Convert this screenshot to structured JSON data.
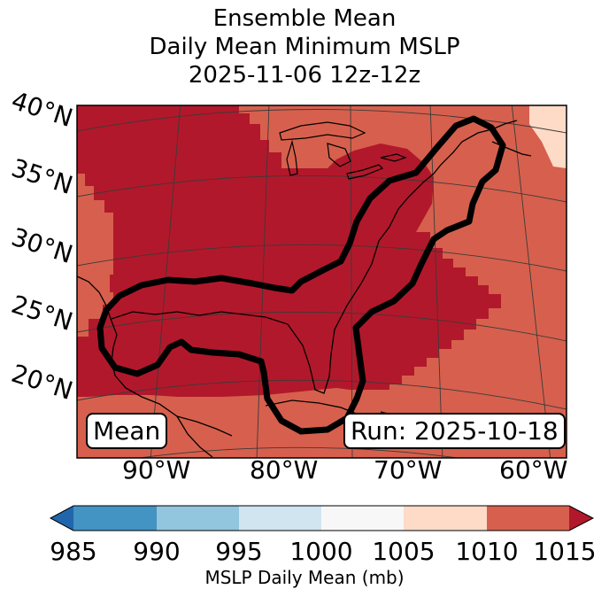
{
  "title": {
    "line1": "Ensemble Mean",
    "line2": "Daily Mean Minimum MSLP",
    "line3": "2025-11-06 12z-12z"
  },
  "map": {
    "lat_labels": [
      "40°N",
      "35°N",
      "30°N",
      "25°N",
      "20°N"
    ],
    "lon_labels": [
      "90°W",
      "80°W",
      "70°W",
      "60°W"
    ],
    "box_mean": "Mean",
    "box_run": "Run: 2025-10-18",
    "colors": {
      "c1010_1015": "#b2182b",
      "c1005_1010": "#d6604d",
      "c1000_1005": "#fddbc7",
      "land": "#000000",
      "contour": "#000000"
    }
  },
  "colorbar": {
    "ticks": [
      "985",
      "990",
      "995",
      "1000",
      "1005",
      "1010",
      "1015"
    ],
    "label": "MSLP Daily Mean (mb)",
    "colors": [
      "#2166ac",
      "#4393c3",
      "#92c5de",
      "#d1e5f0",
      "#f7f7f7",
      "#fddbc7",
      "#d6604d",
      "#b2182b"
    ]
  }
}
